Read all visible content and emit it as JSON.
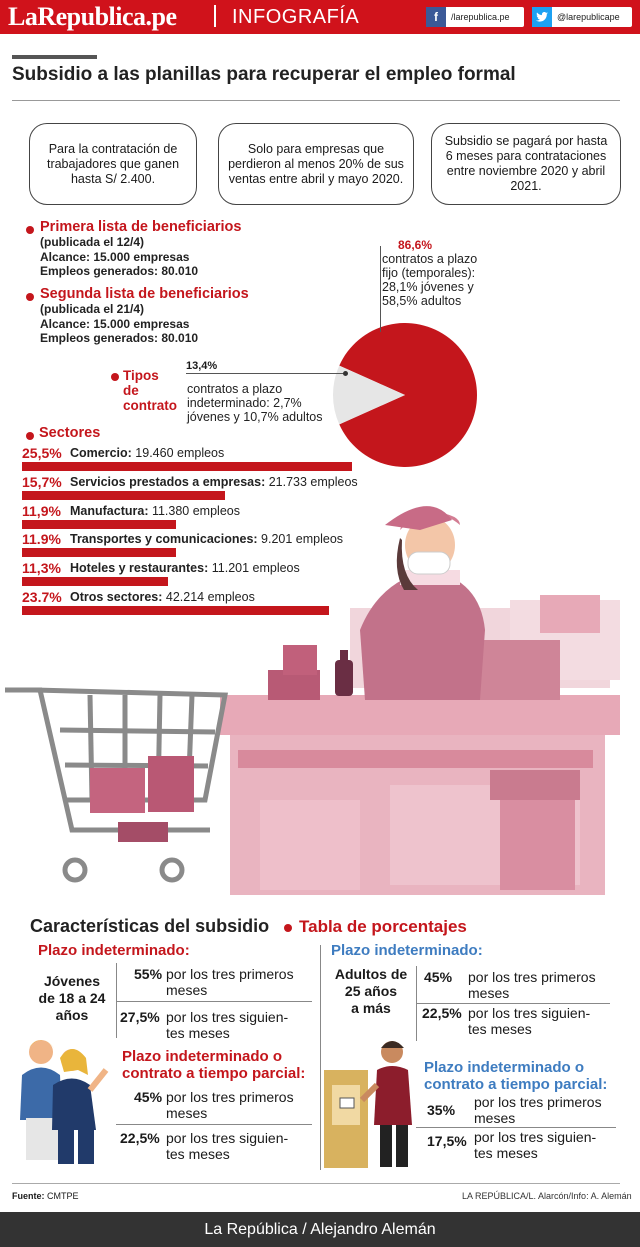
{
  "header": {
    "logo": "LaRepublica.pe",
    "section": "INFOGRAFÍA",
    "facebook": "/larepublica.pe",
    "twitter": "@larepublicape",
    "brand_color": "#d0121b"
  },
  "title": "Subsidio a las planillas para recuperar el empleo formal",
  "boxes": [
    "Para la contratación de trabajadores que ganen hasta S/ 2.400.",
    "Solo para empresas que perdieron al menos 20% de sus ventas entre abril y mayo 2020.",
    "Subsidio se pagará por hasta 6 meses para contrataciones entre noviembre 2020 y abril 2021."
  ],
  "lists": [
    {
      "heading": "Primera lista de beneficiarios",
      "date": "(publicada el 12/4)",
      "alcance": "Alcance: 15.000 empresas",
      "empleos": "Empleos generados: 80.010"
    },
    {
      "heading": "Segunda lista de beneficiarios",
      "date": "(publicada el 21/4)",
      "alcance": "Alcance: 15.000 empresas",
      "empleos": "Empleos generados: 80.010"
    }
  ],
  "contract_types": {
    "label_line1": "Tipos",
    "label_line2": "de",
    "label_line3": "contrato",
    "slices": [
      {
        "pct": "86,6%",
        "value": 86.6,
        "l1": "contratos a plazo",
        "l2": "fijo (temporales):",
        "l3": "28,1% jóvenes y",
        "l4": "58,5% adultos",
        "color": "#c4161c"
      },
      {
        "pct": "13,4%",
        "value": 13.4,
        "l1": "contratos a plazo",
        "l2": "indeterminado:  2,7%",
        "l3": "jóvenes y 10,7% adultos",
        "color": "#e6e6e6"
      }
    ]
  },
  "sectors": {
    "heading": "Sectores",
    "items": [
      {
        "pct": "25,5%",
        "name": "Comercio:",
        "detail": " 19.460 empleos",
        "share": 25.5
      },
      {
        "pct": "15,7%",
        "name": "Servicios prestados a empresas:",
        "detail": " 21.733 empleos",
        "share": 15.7
      },
      {
        "pct": "11,9%",
        "name": "Manufactura:",
        "detail": " 11.380 empleos",
        "share": 11.9
      },
      {
        "pct": "11.9%",
        "name": "Transportes y comunicaciones:",
        "detail": " 9.201 empleos",
        "share": 11.9
      },
      {
        "pct": "11,3%",
        "name": "Hoteles y restaurantes:",
        "detail": " 11.201 empleos",
        "share": 11.3
      },
      {
        "pct": "23.7%",
        "name": "Otros sectores:",
        "detail": " 42.214 empleos",
        "share": 23.7
      }
    ]
  },
  "characteristics": {
    "title": "Características del subsidio",
    "table_title": "Tabla de porcentajes",
    "young": {
      "heading": "Plazo indeterminado:",
      "group_l1": "Jóvenes",
      "group_l2": "de 18 a 24",
      "group_l3": "años",
      "rows": [
        {
          "pct": "55%",
          "t1": "por los tres primeros",
          "t2": "meses"
        },
        {
          "pct": "27,5%",
          "t1": "por los tres siguien-",
          "t2": "tes meses"
        }
      ],
      "heading2_l1": "Plazo indeterminado o",
      "heading2_l2": "contrato a tiempo parcial:",
      "rows2": [
        {
          "pct": "45%",
          "t1": "por los tres primeros",
          "t2": "meses"
        },
        {
          "pct": "22,5%",
          "t1": "por los tres siguien-",
          "t2": "tes meses"
        }
      ]
    },
    "adult": {
      "heading": "Plazo indeterminado:",
      "group_l1": "Adultos de",
      "group_l2": "25 años",
      "group_l3": "a más",
      "rows": [
        {
          "pct": "45%",
          "t1": "por los tres primeros",
          "t2": "meses"
        },
        {
          "pct": "22,5%",
          "t1": "por los tres siguien-",
          "t2": "tes meses"
        }
      ],
      "heading2_l1": "Plazo indeterminado o",
      "heading2_l2": "contrato a tiempo parcial:",
      "rows2": [
        {
          "pct": "35%",
          "t1": "por los tres primeros",
          "t2": "meses"
        },
        {
          "pct": "17,5%",
          "t1": "por los tres siguien-",
          "t2": "tes meses"
        }
      ]
    }
  },
  "footer": {
    "source_label": "Fuente:",
    "source": " CMTPE",
    "credits": "LA REPÚBLICA/L. Alarcón/Info: A. Alemán",
    "bottom": "La República / Alejandro Alemán"
  }
}
